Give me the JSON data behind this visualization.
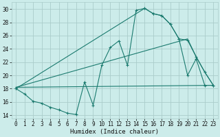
{
  "xlabel": "Humidex (Indice chaleur)",
  "bg_color": "#ccecea",
  "grid_color": "#aaccca",
  "line_color": "#1a7a6e",
  "xlim": [
    -0.5,
    23.5
  ],
  "ylim": [
    13.5,
    31
  ],
  "xticks": [
    0,
    1,
    2,
    3,
    4,
    5,
    6,
    7,
    8,
    9,
    10,
    11,
    12,
    13,
    14,
    15,
    16,
    17,
    18,
    19,
    20,
    21,
    22,
    23
  ],
  "yticks": [
    14,
    16,
    18,
    20,
    22,
    24,
    26,
    28,
    30
  ],
  "series1_x": [
    0,
    1,
    2,
    3,
    4,
    5,
    6,
    7,
    8,
    9,
    10,
    11,
    12,
    13,
    14,
    15,
    16,
    17,
    18,
    19,
    20,
    21,
    22,
    23
  ],
  "series1_y": [
    18,
    17.2,
    16.1,
    15.8,
    15.2,
    14.8,
    14.3,
    14.1,
    19.0,
    15.5,
    21.5,
    24.2,
    25.2,
    21.5,
    29.8,
    30.1,
    29.3,
    29.0,
    27.7,
    25.5,
    20.0,
    22.5,
    18.5,
    18.5
  ],
  "series2_x": [
    0,
    15,
    16,
    17,
    18,
    19,
    20,
    21,
    22,
    23
  ],
  "series2_y": [
    18,
    30.1,
    29.3,
    29.0,
    27.7,
    25.5,
    25.3,
    22.8,
    20.5,
    18.5
  ],
  "series3_x": [
    0,
    23
  ],
  "series3_y": [
    18.2,
    18.5
  ],
  "series4_x": [
    0,
    20,
    21,
    22,
    23
  ],
  "series4_y": [
    18.2,
    25.5,
    22.8,
    20.5,
    18.5
  ]
}
